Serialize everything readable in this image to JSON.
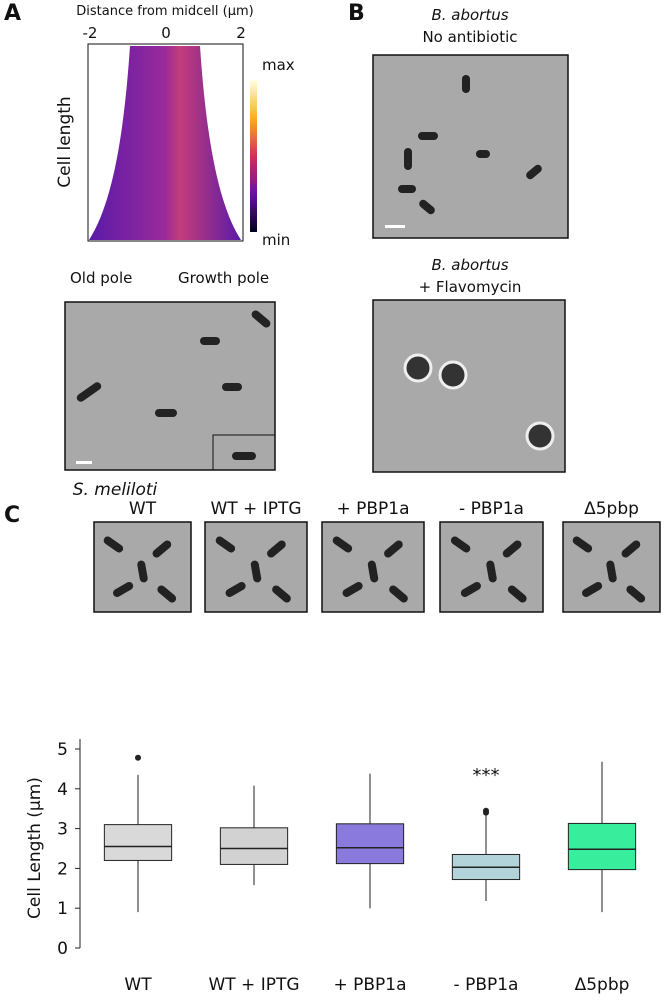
{
  "panels": {
    "A": {
      "label": "A",
      "axis_title": "Distance from midcell (µm)",
      "xticks": [
        "-2",
        "0",
        "2"
      ],
      "y_label": "Cell length",
      "colorbar": {
        "top": "max",
        "bottom": "min"
      },
      "poles": [
        "Old pole",
        "Growth pole"
      ]
    },
    "B": {
      "label": "B",
      "conditions": [
        {
          "species": "B. abortus",
          "treatment": "No antibiotic"
        },
        {
          "species": "B. abortus",
          "treatment": "+ Flavomycin"
        }
      ]
    },
    "C": {
      "label": "C",
      "species": "S. meliloti",
      "image_labels": [
        "WT",
        "WT + IPTG",
        "+ PBP1a",
        "- PBP1a",
        "Δ5pbp"
      ]
    }
  },
  "chart_data": {
    "type": "box",
    "ylabel": "Cell Length (µm)",
    "categories": [
      "WT",
      "WT + IPTG",
      "+ PBP1a",
      "- PBP1a",
      "Δ5pbp"
    ],
    "ylim": [
      0,
      5
    ],
    "yticks": [
      0,
      1,
      2,
      3,
      4,
      5
    ],
    "annotation": {
      "text": "***",
      "category": 3,
      "y": 4.2
    },
    "boxes": [
      {
        "color": "#d9d9d9",
        "min": 0.9,
        "q1": 2.2,
        "median": 2.55,
        "q3": 3.1,
        "max": 4.35,
        "outliers": [
          4.78
        ]
      },
      {
        "color": "#d2d2d2",
        "min": 1.58,
        "q1": 2.1,
        "median": 2.5,
        "q3": 3.02,
        "max": 4.08,
        "outliers": []
      },
      {
        "color": "#8a7ade",
        "min": 1.0,
        "q1": 2.12,
        "median": 2.52,
        "q3": 3.12,
        "max": 4.38,
        "outliers": []
      },
      {
        "color": "#b3d3da",
        "min": 1.18,
        "q1": 1.72,
        "median": 2.03,
        "q3": 2.35,
        "max": 3.35,
        "outliers": [
          3.45,
          3.4
        ]
      },
      {
        "color": "#38ee9c",
        "min": 0.9,
        "q1": 1.97,
        "median": 2.48,
        "q3": 3.13,
        "max": 4.68,
        "outliers": []
      }
    ]
  }
}
